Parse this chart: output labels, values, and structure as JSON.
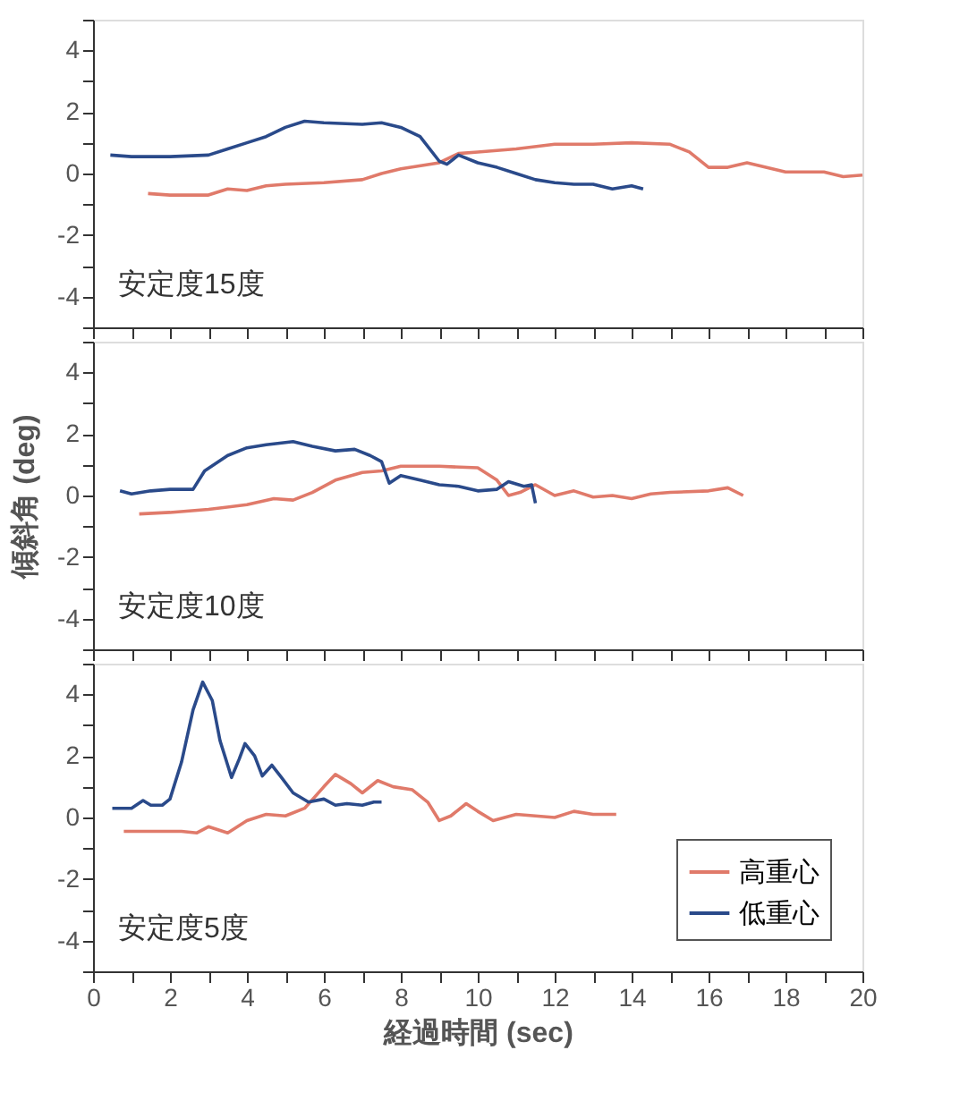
{
  "chart_data": [
    {
      "type": "line",
      "xlim": [
        0,
        20
      ],
      "ylim": [
        -5,
        5
      ],
      "tick_labels": "y",
      "annotations": [
        "安定度15度"
      ],
      "xticks": [
        0,
        {
          "value": 1,
          "label": null
        },
        2,
        {
          "value": 3,
          "label": null
        },
        4,
        {
          "value": 5,
          "label": null
        },
        6,
        {
          "value": 7,
          "label": null
        },
        8,
        {
          "value": 9,
          "label": null
        },
        10,
        {
          "value": 11,
          "label": null
        },
        12,
        {
          "value": 13,
          "label": null
        },
        14,
        {
          "value": 15,
          "label": null
        },
        16,
        {
          "value": 17,
          "label": null
        },
        18,
        {
          "value": 19,
          "label": null
        },
        20
      ],
      "yticks": [
        {
          "value": -5,
          "label": null
        },
        -4,
        {
          "value": -3,
          "label": null
        },
        -2,
        {
          "value": -1,
          "label": null
        },
        0,
        {
          "value": 1,
          "label": null
        },
        2,
        {
          "value": 3,
          "label": null
        },
        4,
        {
          "value": 5,
          "label": null
        }
      ],
      "series": [
        {
          "color": "#e07a6a",
          "x": [
            1.43,
            2,
            3,
            3.5,
            4,
            4.5,
            5,
            6,
            7,
            7.5,
            8,
            9,
            9.5,
            10,
            11,
            12,
            13,
            14,
            15,
            15.5,
            16,
            16.5,
            17,
            18,
            19,
            19.5,
            20
          ],
          "values": [
            -0.65,
            -0.7,
            -0.7,
            -0.5,
            -0.55,
            -0.4,
            -0.35,
            -0.3,
            -0.2,
            0,
            0.15,
            0.35,
            0.65,
            0.7,
            0.8,
            0.95,
            0.95,
            1.0,
            0.95,
            0.7,
            0.2,
            0.2,
            0.35,
            0.05,
            0.05,
            -0.1,
            -0.05
          ]
        },
        {
          "color": "#2a4a8a",
          "x": [
            0.45,
            1,
            2,
            3,
            3.5,
            4,
            4.5,
            5,
            5.5,
            6,
            7,
            7.5,
            8,
            8.5,
            9,
            9.2,
            9.5,
            10,
            10.5,
            11,
            11.5,
            12,
            12.5,
            13,
            13.5,
            14,
            14.3
          ],
          "values": [
            0.6,
            0.55,
            0.55,
            0.6,
            0.8,
            1.0,
            1.2,
            1.5,
            1.7,
            1.65,
            1.6,
            1.65,
            1.5,
            1.2,
            0.4,
            0.3,
            0.6,
            0.35,
            0.2,
            0.0,
            -0.2,
            -0.3,
            -0.35,
            -0.35,
            -0.5,
            -0.4,
            -0.5
          ]
        }
      ]
    },
    {
      "type": "line",
      "xlim": [
        0,
        20
      ],
      "ylim": [
        -5,
        5
      ],
      "tick_labels": "y",
      "ylabel": "傾斜角 (deg)",
      "annotations": [
        "安定度10度"
      ],
      "xticks": [
        0,
        {
          "value": 1,
          "label": null
        },
        2,
        {
          "value": 3,
          "label": null
        },
        4,
        {
          "value": 5,
          "label": null
        },
        6,
        {
          "value": 7,
          "label": null
        },
        8,
        {
          "value": 9,
          "label": null
        },
        10,
        {
          "value": 11,
          "label": null
        },
        12,
        {
          "value": 13,
          "label": null
        },
        14,
        {
          "value": 15,
          "label": null
        },
        16,
        {
          "value": 17,
          "label": null
        },
        18,
        {
          "value": 19,
          "label": null
        },
        20
      ],
      "yticks": [
        {
          "value": -5,
          "label": null
        },
        -4,
        {
          "value": -3,
          "label": null
        },
        -2,
        {
          "value": -1,
          "label": null
        },
        0,
        {
          "value": 1,
          "label": null
        },
        2,
        {
          "value": 3,
          "label": null
        },
        4,
        {
          "value": 5,
          "label": null
        }
      ],
      "series": [
        {
          "color": "#e07a6a",
          "x": [
            1.2,
            2,
            3,
            4,
            4.7,
            5.2,
            5.7,
            6.3,
            7,
            7.5,
            8,
            9,
            10,
            10.5,
            10.8,
            11.1,
            11.5,
            12,
            12.5,
            13,
            13.5,
            14,
            14.5,
            15,
            16,
            16.5,
            16.9
          ],
          "values": [
            -0.6,
            -0.55,
            -0.45,
            -0.3,
            -0.1,
            -0.15,
            0.1,
            0.5,
            0.75,
            0.8,
            0.95,
            0.95,
            0.9,
            0.5,
            0.0,
            0.1,
            0.35,
            0.0,
            0.15,
            -0.05,
            0.0,
            -0.1,
            0.05,
            0.1,
            0.15,
            0.25,
            0.0
          ]
        },
        {
          "color": "#2a4a8a",
          "x": [
            0.7,
            1,
            1.5,
            2,
            2.6,
            2.9,
            3.5,
            4,
            4.5,
            5.2,
            5.7,
            6.3,
            6.8,
            7.2,
            7.5,
            7.7,
            8,
            8.5,
            9,
            9.5,
            10,
            10.5,
            10.8,
            11.2,
            11.4,
            11.5
          ],
          "values": [
            0.15,
            0.05,
            0.15,
            0.2,
            0.2,
            0.8,
            1.3,
            1.55,
            1.65,
            1.75,
            1.6,
            1.45,
            1.5,
            1.3,
            1.1,
            0.4,
            0.65,
            0.5,
            0.35,
            0.3,
            0.15,
            0.2,
            0.45,
            0.3,
            0.35,
            -0.25
          ]
        }
      ]
    },
    {
      "type": "line",
      "xlim": [
        0,
        20
      ],
      "ylim": [
        -5,
        5
      ],
      "xlabel": "経過時間 (sec)",
      "legend": "bottom right",
      "annotations": [
        "安定度5度"
      ],
      "xticks": [
        0,
        {
          "value": 1,
          "label": null
        },
        2,
        {
          "value": 3,
          "label": null
        },
        4,
        {
          "value": 5,
          "label": null
        },
        6,
        {
          "value": 7,
          "label": null
        },
        8,
        {
          "value": 9,
          "label": null
        },
        10,
        {
          "value": 11,
          "label": null
        },
        12,
        {
          "value": 13,
          "label": null
        },
        14,
        {
          "value": 15,
          "label": null
        },
        16,
        {
          "value": 17,
          "label": null
        },
        18,
        {
          "value": 19,
          "label": null
        },
        20
      ],
      "yticks": [
        {
          "value": -5,
          "label": null
        },
        -4,
        {
          "value": -3,
          "label": null
        },
        -2,
        {
          "value": -1,
          "label": null
        },
        0,
        {
          "value": 1,
          "label": null
        },
        2,
        {
          "value": 3,
          "label": null
        },
        4,
        {
          "value": 5,
          "label": null
        }
      ],
      "series": [
        {
          "name": "高重心",
          "color": "#e07a6a",
          "x": [
            0.8,
            1.5,
            2.3,
            2.7,
            3.0,
            3.5,
            4.0,
            4.5,
            5,
            5.5,
            6.0,
            6.3,
            6.7,
            7.0,
            7.4,
            7.8,
            8.3,
            8.7,
            9.0,
            9.3,
            9.7,
            10.0,
            10.4,
            11,
            11.5,
            12,
            12.5,
            13,
            13.6
          ],
          "values": [
            -0.45,
            -0.45,
            -0.45,
            -0.5,
            -0.3,
            -0.5,
            -0.1,
            0.1,
            0.05,
            0.3,
            1.0,
            1.4,
            1.1,
            0.8,
            1.2,
            1.0,
            0.9,
            0.5,
            -0.1,
            0.05,
            0.45,
            0.2,
            -0.1,
            0.1,
            0.05,
            0.0,
            0.2,
            0.1,
            0.1
          ]
        },
        {
          "name": "低重心",
          "color": "#2a4a8a",
          "x": [
            0.5,
            1,
            1.3,
            1.5,
            1.8,
            2.0,
            2.3,
            2.6,
            2.85,
            3.1,
            3.3,
            3.6,
            3.8,
            3.95,
            4.2,
            4.4,
            4.65,
            4.9,
            5.2,
            5.6,
            6.0,
            6.3,
            6.6,
            7,
            7.3,
            7.5
          ],
          "values": [
            0.3,
            0.3,
            0.55,
            0.4,
            0.4,
            0.6,
            1.8,
            3.5,
            4.4,
            3.8,
            2.5,
            1.3,
            1.9,
            2.4,
            2.0,
            1.35,
            1.7,
            1.3,
            0.8,
            0.5,
            0.6,
            0.4,
            0.45,
            0.4,
            0.5,
            0.5
          ]
        }
      ]
    }
  ]
}
